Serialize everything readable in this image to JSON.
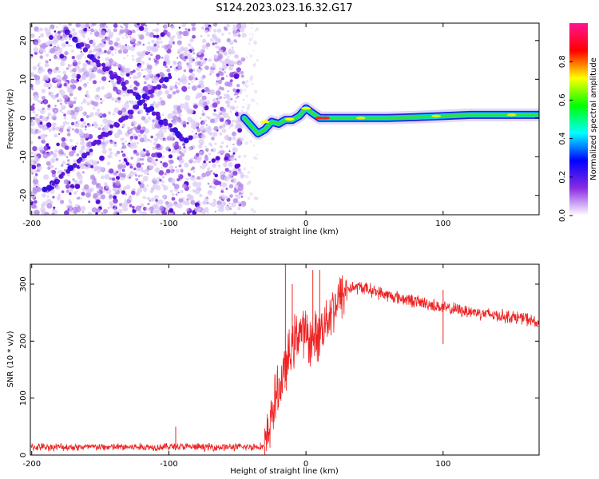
{
  "title": "S124.2023.023.16.32.G17",
  "chart_data": [
    {
      "type": "heatmap",
      "xlabel": "Height of straight line (km)",
      "ylabel": "Frequency (Hz)",
      "xlim": [
        -201,
        170
      ],
      "ylim": [
        -25,
        24.5
      ],
      "xticks": [
        -200,
        -100,
        0,
        100
      ],
      "yticks": [
        -20,
        -10,
        0,
        10,
        20
      ],
      "xtick_labels": [
        "-200",
        "-100",
        "0",
        "100"
      ],
      "ytick_labels": [
        "-20",
        "-10",
        "0",
        "10",
        "20"
      ],
      "grid": false,
      "colorbar": {
        "label": "Normalized spectral amplitude",
        "range": [
          0,
          1
        ],
        "ticks": [
          0.0,
          0.2,
          0.4,
          0.6,
          0.8
        ],
        "tick_labels": [
          "0.0",
          "0.2",
          "0.4",
          "0.6",
          "0.8"
        ],
        "colors": [
          "#ffffff",
          "#8a2be2",
          "#0000ff",
          "#00ffff",
          "#00ff00",
          "#ffff00",
          "#ff0000",
          "#ff1493"
        ]
      },
      "noise_region_x": [
        -201,
        -45
      ],
      "diagonal_tracks": [
        {
          "x": [
            -175,
            -88
          ],
          "y": [
            22,
            -6
          ]
        },
        {
          "x": [
            -190,
            -100
          ],
          "y": [
            -19,
            11
          ]
        }
      ],
      "signal_track": {
        "x": [
          -45,
          -40,
          -35,
          -30,
          -25,
          -20,
          -15,
          -10,
          -5,
          0,
          5,
          10,
          20,
          40,
          60,
          80,
          100,
          120,
          140,
          160,
          170
        ],
        "y": [
          0,
          -2,
          -4,
          -3,
          -1,
          -1.5,
          -0.5,
          -0.5,
          0.5,
          2.5,
          1.2,
          0,
          0,
          0,
          0,
          0.2,
          0.5,
          0.8,
          0.8,
          0.8,
          0.8
        ]
      }
    },
    {
      "type": "line",
      "xlabel": "Height of straight line (km)",
      "ylabel": "SNR (10 * v/v)",
      "xlim": [
        -201,
        170
      ],
      "ylim": [
        0,
        335
      ],
      "xticks": [
        -200,
        -100,
        0,
        100
      ],
      "yticks": [
        0,
        100,
        200,
        300
      ],
      "xtick_labels": [
        "-200",
        "-100",
        "0",
        "100"
      ],
      "ytick_labels": [
        "0",
        "100",
        "200",
        "300"
      ],
      "grid": false,
      "color": "#ee2222",
      "series": [
        {
          "x": [
            -201,
            -190,
            -170,
            -150,
            -130,
            -110,
            -95,
            -80,
            -60,
            -45,
            -35,
            -30,
            -27,
            -25,
            -20,
            -15,
            -10,
            -5,
            0,
            5,
            10,
            15,
            20,
            25,
            30,
            40,
            60,
            80,
            95,
            100,
            110,
            120,
            140,
            160,
            170
          ],
          "y": [
            14,
            14,
            14,
            14,
            14,
            14,
            15,
            14,
            14,
            14,
            15,
            15,
            40,
            75,
            115,
            150,
            190,
            220,
            210,
            200,
            215,
            240,
            260,
            275,
            293,
            295,
            280,
            270,
            262,
            258,
            255,
            252,
            245,
            240,
            230
          ],
          "spikes": [
            {
              "x": -95,
              "y": 50
            },
            {
              "x": -30,
              "y": 0
            },
            {
              "x": -15,
              "y": 335
            },
            {
              "x": -10,
              "y": 300
            },
            {
              "x": 5,
              "y": 325
            },
            {
              "x": 10,
              "y": 325
            },
            {
              "x": 100,
              "y": 195
            },
            {
              "x": 100,
              "y": 290
            }
          ]
        }
      ]
    }
  ]
}
